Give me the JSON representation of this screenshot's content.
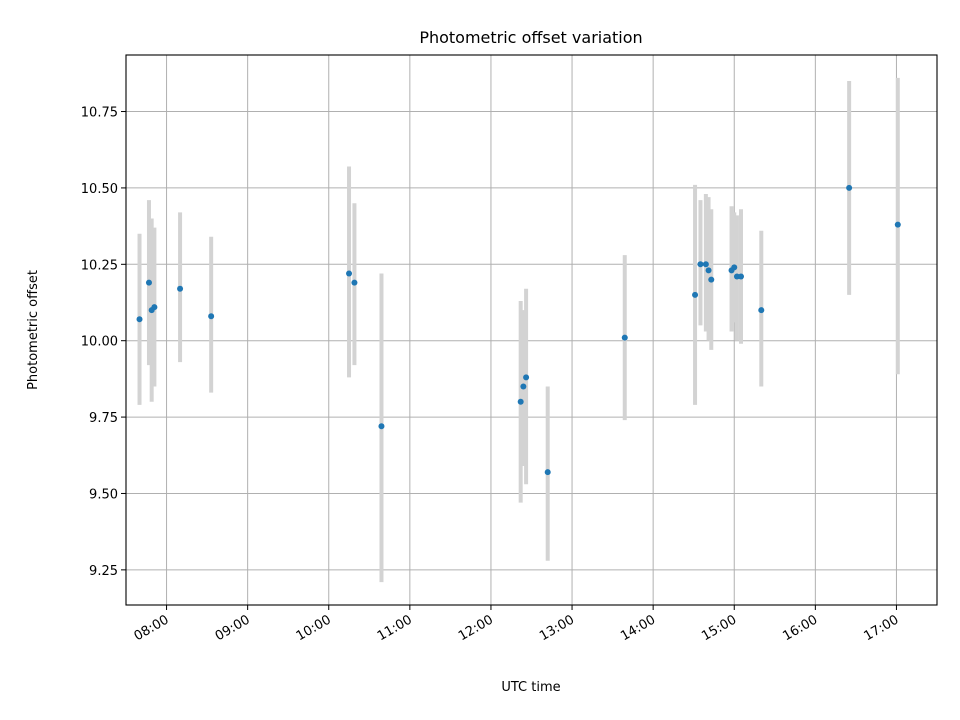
{
  "chart_data": {
    "type": "scatter",
    "title": "Photometric offset variation",
    "xlabel": "UTC time",
    "ylabel": "Photometric offset",
    "xlim": [
      "07:30",
      "17:30"
    ],
    "ylim": [
      9.135,
      10.935
    ],
    "grid": true,
    "x_ticks": [
      "08:00",
      "09:00",
      "10:00",
      "11:00",
      "12:00",
      "13:00",
      "14:00",
      "15:00",
      "16:00",
      "17:00"
    ],
    "y_ticks": [
      9.25,
      9.5,
      9.75,
      10.0,
      10.25,
      10.5,
      10.75
    ],
    "y_tick_labels": [
      "9.25",
      "9.50",
      "9.75",
      "10.00",
      "10.25",
      "10.50",
      "10.75"
    ],
    "marker_color": "#1f77b4",
    "errorbar_color": "#d3d3d3",
    "series": [
      {
        "points": [
          {
            "x": "07:40",
            "y": 10.07,
            "ylow": 9.79,
            "yhigh": 10.35
          },
          {
            "x": "07:47",
            "y": 10.19,
            "ylow": 9.92,
            "yhigh": 10.46
          },
          {
            "x": "07:49",
            "y": 10.1,
            "ylow": 9.8,
            "yhigh": 10.4
          },
          {
            "x": "07:51",
            "y": 10.11,
            "ylow": 9.85,
            "yhigh": 10.37
          },
          {
            "x": "08:10",
            "y": 10.17,
            "ylow": 9.93,
            "yhigh": 10.42
          },
          {
            "x": "08:33",
            "y": 10.08,
            "ylow": 9.83,
            "yhigh": 10.34
          },
          {
            "x": "10:15",
            "y": 10.22,
            "ylow": 9.88,
            "yhigh": 10.57
          },
          {
            "x": "10:19",
            "y": 10.19,
            "ylow": 9.92,
            "yhigh": 10.45
          },
          {
            "x": "10:39",
            "y": 9.72,
            "ylow": 9.21,
            "yhigh": 10.22
          },
          {
            "x": "12:22",
            "y": 9.8,
            "ylow": 9.47,
            "yhigh": 10.13
          },
          {
            "x": "12:24",
            "y": 9.85,
            "ylow": 9.59,
            "yhigh": 10.1
          },
          {
            "x": "12:26",
            "y": 9.88,
            "ylow": 9.53,
            "yhigh": 10.17
          },
          {
            "x": "12:42",
            "y": 9.57,
            "ylow": 9.28,
            "yhigh": 9.85
          },
          {
            "x": "13:39",
            "y": 10.01,
            "ylow": 9.74,
            "yhigh": 10.28
          },
          {
            "x": "14:31",
            "y": 10.15,
            "ylow": 9.79,
            "yhigh": 10.51
          },
          {
            "x": "14:35",
            "y": 10.25,
            "ylow": 10.05,
            "yhigh": 10.46
          },
          {
            "x": "14:39",
            "y": 10.25,
            "ylow": 10.03,
            "yhigh": 10.48
          },
          {
            "x": "14:41",
            "y": 10.23,
            "ylow": 10.0,
            "yhigh": 10.47
          },
          {
            "x": "14:43",
            "y": 10.2,
            "ylow": 9.97,
            "yhigh": 10.43
          },
          {
            "x": "14:58",
            "y": 10.23,
            "ylow": 10.03,
            "yhigh": 10.44
          },
          {
            "x": "15:00",
            "y": 10.24,
            "ylow": 10.06,
            "yhigh": 10.42
          },
          {
            "x": "15:02",
            "y": 10.21,
            "ylow": 10.0,
            "yhigh": 10.41
          },
          {
            "x": "15:05",
            "y": 10.21,
            "ylow": 9.99,
            "yhigh": 10.43
          },
          {
            "x": "15:20",
            "y": 10.1,
            "ylow": 9.85,
            "yhigh": 10.36
          },
          {
            "x": "16:25",
            "y": 10.5,
            "ylow": 10.15,
            "yhigh": 10.85
          },
          {
            "x": "17:01",
            "y": 10.38,
            "ylow": 9.89,
            "yhigh": 10.86
          }
        ]
      }
    ]
  }
}
